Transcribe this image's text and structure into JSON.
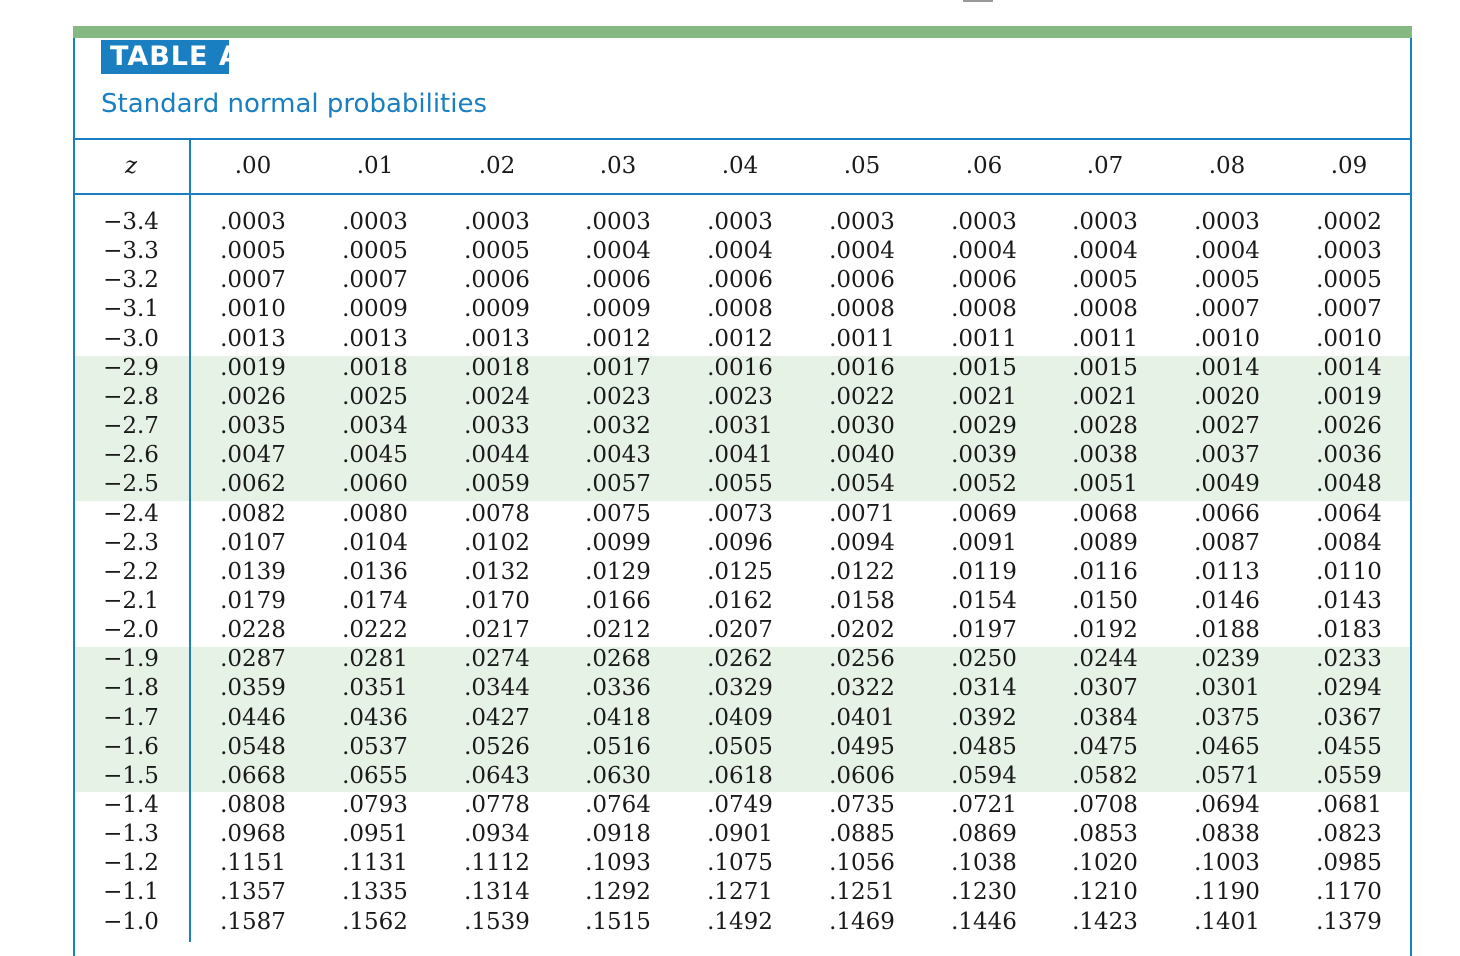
{
  "title_badge": "TABLE A",
  "subtitle": "Standard normal probabilities",
  "table": {
    "z_header": "z",
    "columns": [
      ".00",
      ".01",
      ".02",
      ".03",
      ".04",
      ".05",
      ".06",
      ".07",
      ".08",
      ".09"
    ],
    "rows": [
      {
        "z": "−3.4",
        "values": [
          ".0003",
          ".0003",
          ".0003",
          ".0003",
          ".0003",
          ".0003",
          ".0003",
          ".0003",
          ".0003",
          ".0002"
        ]
      },
      {
        "z": "−3.3",
        "values": [
          ".0005",
          ".0005",
          ".0005",
          ".0004",
          ".0004",
          ".0004",
          ".0004",
          ".0004",
          ".0004",
          ".0003"
        ]
      },
      {
        "z": "−3.2",
        "values": [
          ".0007",
          ".0007",
          ".0006",
          ".0006",
          ".0006",
          ".0006",
          ".0006",
          ".0005",
          ".0005",
          ".0005"
        ]
      },
      {
        "z": "−3.1",
        "values": [
          ".0010",
          ".0009",
          ".0009",
          ".0009",
          ".0008",
          ".0008",
          ".0008",
          ".0008",
          ".0007",
          ".0007"
        ]
      },
      {
        "z": "−3.0",
        "values": [
          ".0013",
          ".0013",
          ".0013",
          ".0012",
          ".0012",
          ".0011",
          ".0011",
          ".0011",
          ".0010",
          ".0010"
        ]
      },
      {
        "z": "−2.9",
        "values": [
          ".0019",
          ".0018",
          ".0018",
          ".0017",
          ".0016",
          ".0016",
          ".0015",
          ".0015",
          ".0014",
          ".0014"
        ]
      },
      {
        "z": "−2.8",
        "values": [
          ".0026",
          ".0025",
          ".0024",
          ".0023",
          ".0023",
          ".0022",
          ".0021",
          ".0021",
          ".0020",
          ".0019"
        ]
      },
      {
        "z": "−2.7",
        "values": [
          ".0035",
          ".0034",
          ".0033",
          ".0032",
          ".0031",
          ".0030",
          ".0029",
          ".0028",
          ".0027",
          ".0026"
        ]
      },
      {
        "z": "−2.6",
        "values": [
          ".0047",
          ".0045",
          ".0044",
          ".0043",
          ".0041",
          ".0040",
          ".0039",
          ".0038",
          ".0037",
          ".0036"
        ]
      },
      {
        "z": "−2.5",
        "values": [
          ".0062",
          ".0060",
          ".0059",
          ".0057",
          ".0055",
          ".0054",
          ".0052",
          ".0051",
          ".0049",
          ".0048"
        ]
      },
      {
        "z": "−2.4",
        "values": [
          ".0082",
          ".0080",
          ".0078",
          ".0075",
          ".0073",
          ".0071",
          ".0069",
          ".0068",
          ".0066",
          ".0064"
        ]
      },
      {
        "z": "−2.3",
        "values": [
          ".0107",
          ".0104",
          ".0102",
          ".0099",
          ".0096",
          ".0094",
          ".0091",
          ".0089",
          ".0087",
          ".0084"
        ]
      },
      {
        "z": "−2.2",
        "values": [
          ".0139",
          ".0136",
          ".0132",
          ".0129",
          ".0125",
          ".0122",
          ".0119",
          ".0116",
          ".0113",
          ".0110"
        ]
      },
      {
        "z": "−2.1",
        "values": [
          ".0179",
          ".0174",
          ".0170",
          ".0166",
          ".0162",
          ".0158",
          ".0154",
          ".0150",
          ".0146",
          ".0143"
        ]
      },
      {
        "z": "−2.0",
        "values": [
          ".0228",
          ".0222",
          ".0217",
          ".0212",
          ".0207",
          ".0202",
          ".0197",
          ".0192",
          ".0188",
          ".0183"
        ]
      },
      {
        "z": "−1.9",
        "values": [
          ".0287",
          ".0281",
          ".0274",
          ".0268",
          ".0262",
          ".0256",
          ".0250",
          ".0244",
          ".0239",
          ".0233"
        ]
      },
      {
        "z": "−1.8",
        "values": [
          ".0359",
          ".0351",
          ".0344",
          ".0336",
          ".0329",
          ".0322",
          ".0314",
          ".0307",
          ".0301",
          ".0294"
        ]
      },
      {
        "z": "−1.7",
        "values": [
          ".0446",
          ".0436",
          ".0427",
          ".0418",
          ".0409",
          ".0401",
          ".0392",
          ".0384",
          ".0375",
          ".0367"
        ]
      },
      {
        "z": "−1.6",
        "values": [
          ".0548",
          ".0537",
          ".0526",
          ".0516",
          ".0505",
          ".0495",
          ".0485",
          ".0475",
          ".0465",
          ".0455"
        ]
      },
      {
        "z": "−1.5",
        "values": [
          ".0668",
          ".0655",
          ".0643",
          ".0630",
          ".0618",
          ".0606",
          ".0594",
          ".0582",
          ".0571",
          ".0559"
        ]
      },
      {
        "z": "−1.4",
        "values": [
          ".0808",
          ".0793",
          ".0778",
          ".0764",
          ".0749",
          ".0735",
          ".0721",
          ".0708",
          ".0694",
          ".0681"
        ]
      },
      {
        "z": "−1.3",
        "values": [
          ".0968",
          ".0951",
          ".0934",
          ".0918",
          ".0901",
          ".0885",
          ".0869",
          ".0853",
          ".0838",
          ".0823"
        ]
      },
      {
        "z": "−1.2",
        "values": [
          ".1151",
          ".1131",
          ".1112",
          ".1093",
          ".1075",
          ".1056",
          ".1038",
          ".1020",
          ".1003",
          ".0985"
        ]
      },
      {
        "z": "−1.1",
        "values": [
          ".1357",
          ".1335",
          ".1314",
          ".1292",
          ".1271",
          ".1251",
          ".1230",
          ".1210",
          ".1190",
          ".1170"
        ]
      },
      {
        "z": "−1.0",
        "values": [
          ".1587",
          ".1562",
          ".1539",
          ".1515",
          ".1492",
          ".1469",
          ".1446",
          ".1423",
          ".1401",
          ".1379"
        ]
      }
    ]
  }
}
